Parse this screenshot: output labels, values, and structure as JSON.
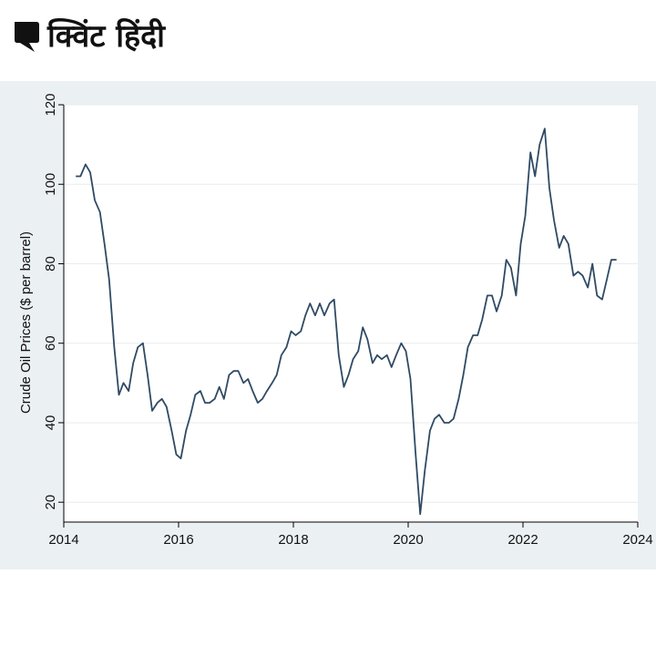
{
  "brand": {
    "logo_text": "क्विंट हिंदी",
    "logo_icon": "quint-quote-mark-icon",
    "logo_color": "#111111"
  },
  "colors": {
    "frame_background": "#ebf0f3",
    "plot_background": "#ffffff",
    "line": "#2f4a64",
    "grid": "#e8ebee",
    "axis": "#000000"
  },
  "chart_data": {
    "type": "line",
    "title": "",
    "xlabel": "",
    "ylabel": "Crude Oil Prices ($ per barrel)",
    "xlim": [
      2014,
      2024
    ],
    "ylim": [
      15,
      120
    ],
    "xticks": [
      2014,
      2016,
      2018,
      2020,
      2022,
      2024
    ],
    "xtick_labels": [
      "2014",
      "2016",
      "2018",
      "2020",
      "2022",
      "2024"
    ],
    "yticks": [
      20,
      40,
      60,
      80,
      100,
      120
    ],
    "ytick_labels": [
      "20",
      "40",
      "60",
      "80",
      "100",
      "120"
    ],
    "grid": "horizontal",
    "series": [
      {
        "x": [
          2014.21,
          2014.29,
          2014.38,
          2014.46,
          2014.54,
          2014.63,
          2014.71,
          2014.79,
          2014.88,
          2014.96,
          2015.04,
          2015.13,
          2015.21,
          2015.29,
          2015.38,
          2015.46,
          2015.54,
          2015.63,
          2015.71,
          2015.79,
          2015.88,
          2015.96,
          2016.04,
          2016.13,
          2016.21,
          2016.29,
          2016.38,
          2016.46,
          2016.54,
          2016.63,
          2016.71,
          2016.79,
          2016.88,
          2016.96,
          2017.04,
          2017.13,
          2017.21,
          2017.29,
          2017.38,
          2017.46,
          2017.54,
          2017.63,
          2017.71,
          2017.79,
          2017.88,
          2017.96,
          2018.04,
          2018.13,
          2018.21,
          2018.29,
          2018.38,
          2018.46,
          2018.54,
          2018.63,
          2018.71,
          2018.79,
          2018.88,
          2018.96,
          2019.04,
          2019.13,
          2019.21,
          2019.29,
          2019.38,
          2019.46,
          2019.54,
          2019.63,
          2019.71,
          2019.79,
          2019.88,
          2019.96,
          2020.04,
          2020.13,
          2020.21,
          2020.29,
          2020.38,
          2020.46,
          2020.54,
          2020.63,
          2020.71,
          2020.79,
          2020.88,
          2020.96,
          2021.04,
          2021.13,
          2021.21,
          2021.29,
          2021.38,
          2021.46,
          2021.54,
          2021.63,
          2021.71,
          2021.79,
          2021.88,
          2021.96,
          2022.04,
          2022.13,
          2022.21,
          2022.29,
          2022.38,
          2022.46,
          2022.54,
          2022.63,
          2022.71,
          2022.79,
          2022.88,
          2022.96,
          2023.04,
          2023.13,
          2023.21,
          2023.29,
          2023.38,
          2023.46,
          2023.54,
          2023.63
        ],
        "values": [
          102,
          102,
          105,
          103,
          96,
          93,
          85,
          76,
          59,
          47,
          50,
          48,
          55,
          59,
          60,
          52,
          43,
          45,
          46,
          44,
          38,
          32,
          31,
          38,
          42,
          47,
          48,
          45,
          45,
          46,
          49,
          46,
          52,
          53,
          53,
          50,
          51,
          48,
          45,
          46,
          48,
          50,
          52,
          57,
          59,
          63,
          62,
          63,
          67,
          70,
          67,
          70,
          67,
          70,
          71,
          57,
          49,
          52,
          56,
          58,
          64,
          61,
          55,
          57,
          56,
          57,
          54,
          57,
          60,
          58,
          51,
          32,
          17,
          28,
          38,
          41,
          42,
          40,
          40,
          41,
          46,
          52,
          59,
          62,
          62,
          66,
          72,
          72,
          68,
          72,
          81,
          79,
          72,
          85,
          92,
          108,
          102,
          110,
          114,
          99,
          91,
          84,
          87,
          85,
          77,
          78,
          77,
          74,
          80,
          72,
          71,
          76,
          81,
          81
        ]
      }
    ]
  }
}
